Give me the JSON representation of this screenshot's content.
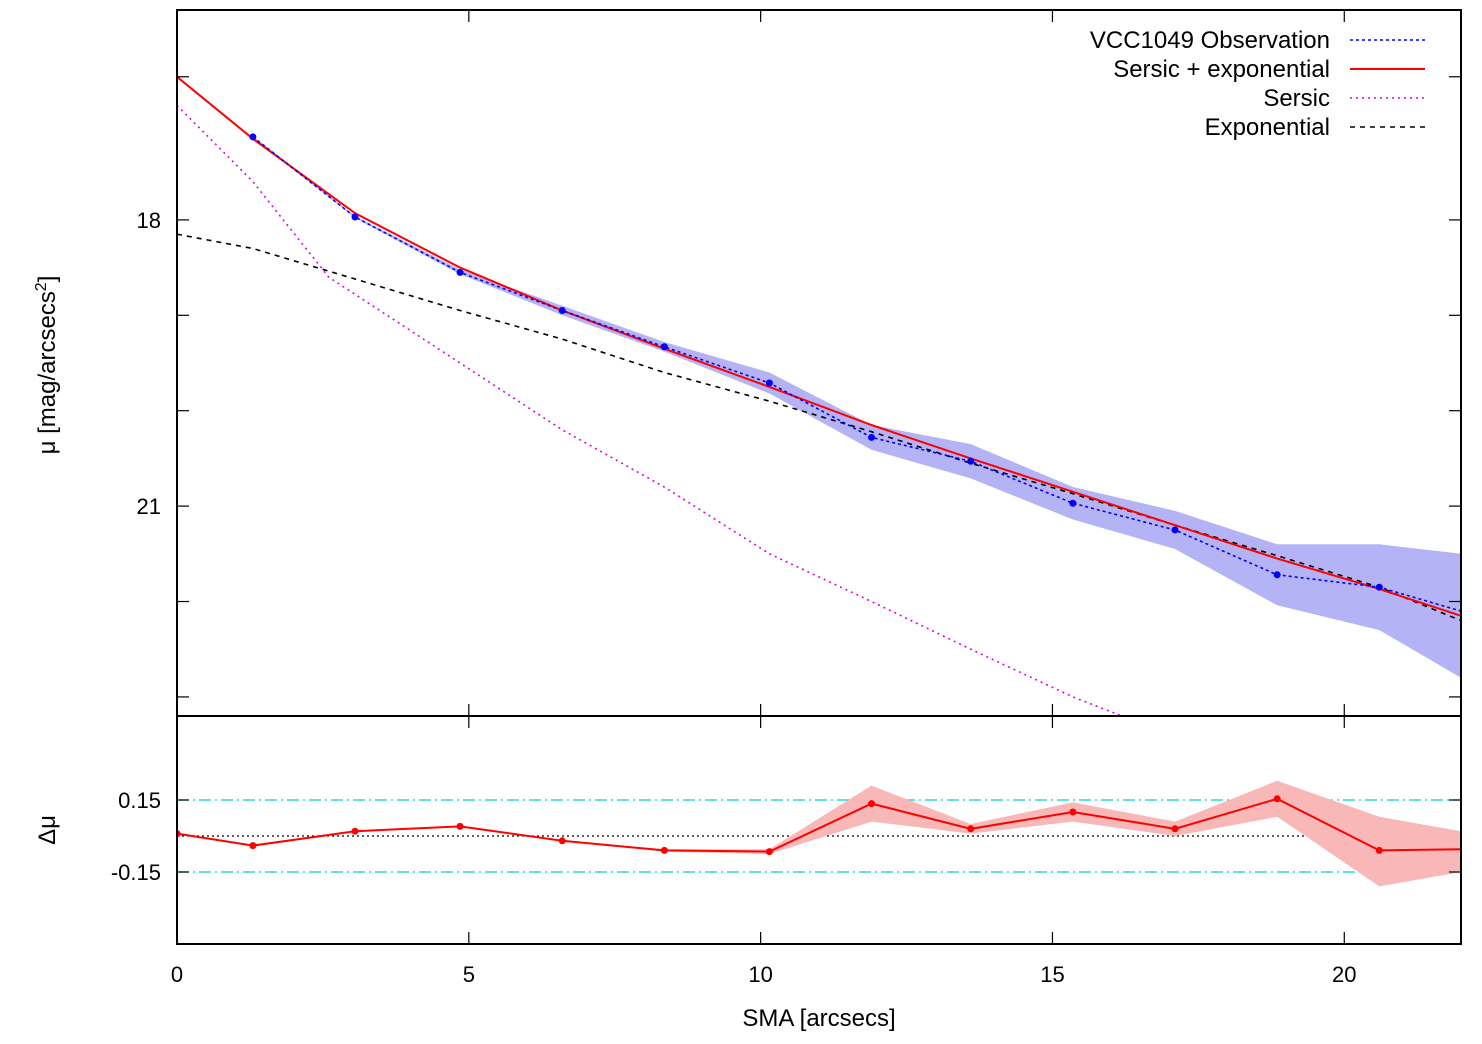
{
  "chart_data": [
    {
      "type": "line",
      "ylabel": "μ [mag/arcsecs",
      "ylabel_sup": "2",
      "xlim": [
        0,
        22
      ],
      "ylim": [
        23.2,
        15.8
      ],
      "y_inverted": true,
      "y_ticks": [
        18,
        21
      ],
      "y_minor_ticks": [
        16.5,
        19,
        20,
        22,
        23
      ],
      "legend_position": "top-right",
      "series": [
        {
          "name": "VCC1049 Observation",
          "style": "dotted-with-points",
          "color": "#0000ff",
          "band_color": "#b3b3f5",
          "x": [
            1.3,
            3.05,
            4.85,
            6.6,
            8.35,
            10.15,
            11.9,
            13.6,
            15.35,
            17.1,
            18.85,
            20.6,
            22
          ],
          "y": [
            17.13,
            17.97,
            18.55,
            18.95,
            19.33,
            19.71,
            20.28,
            20.53,
            20.97,
            21.25,
            21.72,
            21.85,
            22.1
          ],
          "y_low": [
            17.12,
            17.96,
            18.52,
            18.9,
            19.28,
            19.6,
            20.15,
            20.35,
            20.8,
            21.05,
            21.4,
            21.4,
            21.5
          ],
          "y_high": [
            17.14,
            17.98,
            18.57,
            19.0,
            19.38,
            19.82,
            20.41,
            20.71,
            21.14,
            21.45,
            22.04,
            22.3,
            22.8
          ]
        },
        {
          "name": "Sersic + exponential",
          "style": "solid",
          "color": "#ff0000",
          "x": [
            0,
            1.3,
            3.05,
            4.85,
            6.6,
            8.35,
            10.15,
            11.9,
            13.6,
            15.35,
            17.1,
            18.85,
            20.6,
            22
          ],
          "y": [
            16.5,
            17.15,
            17.93,
            18.5,
            18.95,
            19.35,
            19.75,
            20.15,
            20.5,
            20.85,
            21.2,
            21.55,
            21.87,
            22.15
          ]
        },
        {
          "name": "Sersic",
          "style": "dotted",
          "color": "#e000e0",
          "x": [
            0,
            1.3,
            2.6,
            4.85,
            6.6,
            8.35,
            10.15,
            11.9,
            13.6,
            15.35,
            16.4
          ],
          "y": [
            16.8,
            17.6,
            18.6,
            19.5,
            20.2,
            20.8,
            21.5,
            22.0,
            22.5,
            23.0,
            23.25
          ]
        },
        {
          "name": "Exponential",
          "style": "dashed",
          "color": "#000000",
          "x": [
            0,
            1.3,
            3.05,
            4.85,
            6.6,
            8.35,
            10.15,
            11.9,
            13.6,
            15.35,
            17.1,
            18.85,
            20.6,
            22
          ],
          "y": [
            18.15,
            18.3,
            18.62,
            18.95,
            19.25,
            19.6,
            19.9,
            20.22,
            20.55,
            20.87,
            21.2,
            21.52,
            21.85,
            22.2
          ]
        }
      ]
    },
    {
      "type": "line",
      "ylabel": "Δμ",
      "xlabel": "SMA [arcsecs]",
      "xlim": [
        0,
        22
      ],
      "ylim": [
        -0.45,
        0.5
      ],
      "y_ticks": [
        0.15,
        -0.15
      ],
      "y_tick_labels": [
        "0.15",
        "-0.15"
      ],
      "x_ticks": [
        0,
        5,
        10,
        15,
        20
      ],
      "reference_lines": [
        {
          "y": 0.15,
          "style": "dash-dot",
          "color": "#00d0c8"
        },
        {
          "y": -0.15,
          "style": "dash-dot",
          "color": "#00d0c8"
        },
        {
          "y": 0,
          "style": "dotted",
          "color": "#000000"
        }
      ],
      "series": [
        {
          "style": "solid-with-points",
          "color": "#ff0000",
          "band_color": "#f8b8b8",
          "x": [
            0,
            1.3,
            3.05,
            4.85,
            6.6,
            8.35,
            10.15,
            11.9,
            13.6,
            15.35,
            17.1,
            18.85,
            20.6,
            22
          ],
          "y": [
            0.01,
            -0.04,
            0.02,
            0.04,
            -0.02,
            -0.06,
            -0.065,
            0.135,
            0.03,
            0.1,
            0.03,
            0.155,
            -0.06,
            -0.055
          ],
          "y_low": [
            0.01,
            -0.04,
            0.02,
            0.04,
            -0.02,
            -0.065,
            -0.075,
            0.06,
            0.01,
            0.06,
            0.0,
            0.08,
            -0.21,
            -0.15
          ],
          "y_high": [
            0.01,
            -0.04,
            0.02,
            0.04,
            -0.02,
            -0.055,
            -0.055,
            0.21,
            0.05,
            0.14,
            0.06,
            0.23,
            0.08,
            0.02
          ]
        }
      ]
    }
  ]
}
